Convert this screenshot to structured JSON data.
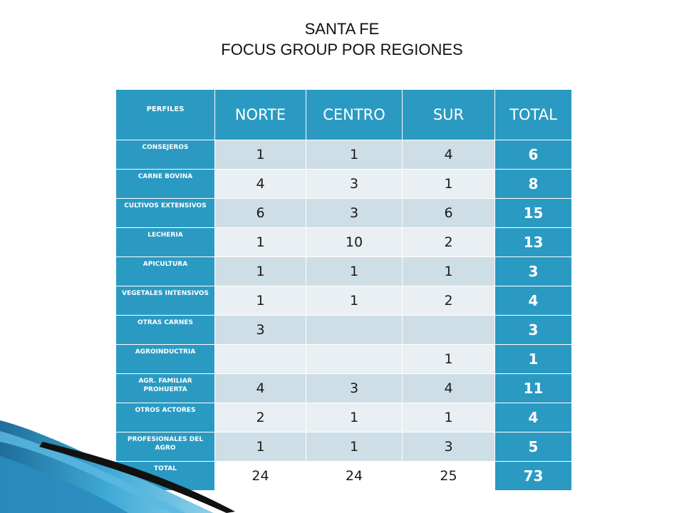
{
  "title_line1": "SANTA FE",
  "title_line2": "FOCUS GROUP POR REGIONES",
  "table": {
    "header": [
      "PERFILES",
      "NORTE",
      "CENTRO",
      "SUR",
      "TOTAL"
    ],
    "rows": [
      {
        "label": "CONSEJEROS",
        "norte": "1",
        "centro": "1",
        "sur": "4",
        "total": "6"
      },
      {
        "label": "CARNE BOVINA",
        "norte": "4",
        "centro": "3",
        "sur": "1",
        "total": "8"
      },
      {
        "label": "CULTIVOS EXTENSIVOS",
        "norte": "6",
        "centro": "3",
        "sur": "6",
        "total": "15"
      },
      {
        "label": "LECHERIA",
        "norte": "1",
        "centro": "10",
        "sur": "2",
        "total": "13"
      },
      {
        "label": "APICULTURA",
        "norte": "1",
        "centro": "1",
        "sur": "1",
        "total": "3"
      },
      {
        "label": "VEGETALES INTENSIVOS",
        "norte": "1",
        "centro": "1",
        "sur": "2",
        "total": "4"
      },
      {
        "label": "OTRAS CARNES",
        "norte": "3",
        "centro": "",
        "sur": "",
        "total": "3"
      },
      {
        "label": "AGROINDUCTRIA",
        "norte": "",
        "centro": "",
        "sur": "1",
        "total": "1"
      },
      {
        "label": "AGR. FAMILIAR PROHUERTA",
        "norte": "4",
        "centro": "3",
        "sur": "4",
        "total": "11"
      },
      {
        "label": "OTROS ACTORES",
        "norte": "2",
        "centro": "1",
        "sur": "1",
        "total": "4"
      },
      {
        "label": "PROFESIONALES DEL AGRO",
        "norte": "1",
        "centro": "1",
        "sur": "3",
        "total": "5"
      },
      {
        "label": "TOTAL",
        "norte": "24",
        "centro": "24",
        "sur": "25",
        "total": "73"
      }
    ]
  },
  "colors": {
    "header_blue": "#2a9ac3",
    "row_shade_dark": "#cddee6",
    "row_shade_light": "#e9eff2"
  }
}
